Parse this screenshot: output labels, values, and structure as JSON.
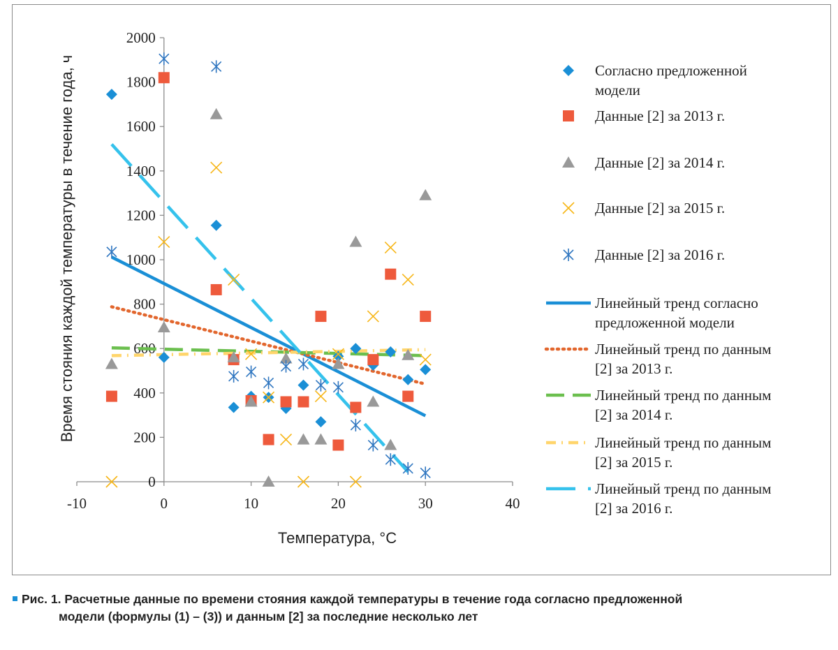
{
  "chart_data": {
    "type": "scatter",
    "xlabel": "Температура, °C",
    "ylabel": "Время стояния каждой температуры в течение года, ч",
    "xlim": [
      -10,
      40
    ],
    "ylim": [
      0,
      2000
    ],
    "xticks": [
      "-10",
      "0",
      "10",
      "20",
      "30",
      "40"
    ],
    "yticks": [
      "0",
      "200",
      "400",
      "600",
      "800",
      "1000",
      "1200",
      "1400",
      "1600",
      "1800",
      "2000"
    ],
    "grid": false,
    "legend_position": "right",
    "series": [
      {
        "name": "Согласно предложенной модели",
        "marker": "diamond",
        "color": "#1a8fd6",
        "points": [
          [
            -6,
            1745
          ],
          [
            0,
            560
          ],
          [
            6,
            1155
          ],
          [
            8,
            335
          ],
          [
            10,
            385
          ],
          [
            12,
            380
          ],
          [
            14,
            330
          ],
          [
            16,
            435
          ],
          [
            18,
            270
          ],
          [
            20,
            565
          ],
          [
            22,
            600
          ],
          [
            24,
            525
          ],
          [
            26,
            585
          ],
          [
            28,
            460
          ],
          [
            30,
            505
          ]
        ]
      },
      {
        "name": "Данные [2] за 2013 г.",
        "marker": "square",
        "color": "#ee5a3c",
        "points": [
          [
            -6,
            385
          ],
          [
            0,
            1820
          ],
          [
            6,
            865
          ],
          [
            8,
            550
          ],
          [
            10,
            365
          ],
          [
            12,
            190
          ],
          [
            14,
            360
          ],
          [
            16,
            360
          ],
          [
            18,
            745
          ],
          [
            20,
            165
          ],
          [
            22,
            335
          ],
          [
            24,
            550
          ],
          [
            26,
            935
          ],
          [
            28,
            385
          ],
          [
            30,
            745
          ]
        ]
      },
      {
        "name": "Данные [2] за 2014 г.",
        "marker": "triangle",
        "color": "#999999",
        "points": [
          [
            -6,
            530
          ],
          [
            0,
            695
          ],
          [
            6,
            1655
          ],
          [
            8,
            560
          ],
          [
            10,
            360
          ],
          [
            12,
            0
          ],
          [
            14,
            555
          ],
          [
            16,
            190
          ],
          [
            18,
            190
          ],
          [
            20,
            530
          ],
          [
            22,
            1080
          ],
          [
            24,
            360
          ],
          [
            26,
            165
          ],
          [
            28,
            570
          ],
          [
            30,
            1290
          ]
        ]
      },
      {
        "name": "Данные [2] за 2015 г.",
        "marker": "x",
        "color": "#f7b617",
        "points": [
          [
            -6,
            0
          ],
          [
            0,
            1080
          ],
          [
            6,
            1415
          ],
          [
            8,
            910
          ],
          [
            10,
            575
          ],
          [
            12,
            380
          ],
          [
            14,
            190
          ],
          [
            16,
            0
          ],
          [
            18,
            385
          ],
          [
            20,
            575
          ],
          [
            22,
            0
          ],
          [
            24,
            745
          ],
          [
            26,
            1055
          ],
          [
            28,
            910
          ],
          [
            30,
            550
          ]
        ]
      },
      {
        "name": "Данные [2] за 2016 г.",
        "marker": "asterisk",
        "color": "#2f76c0",
        "points": [
          [
            -6,
            1035
          ],
          [
            0,
            1905
          ],
          [
            6,
            1870
          ],
          [
            8,
            475
          ],
          [
            10,
            495
          ],
          [
            12,
            445
          ],
          [
            14,
            520
          ],
          [
            16,
            530
          ],
          [
            18,
            435
          ],
          [
            20,
            425
          ],
          [
            22,
            255
          ],
          [
            24,
            165
          ],
          [
            26,
            100
          ],
          [
            28,
            60
          ],
          [
            30,
            40
          ]
        ]
      }
    ],
    "trendlines": [
      {
        "name": "Линейный тренд согласно предложенной модели",
        "style": "solid",
        "color": "#1a8fd6",
        "x": [
          -6,
          30
        ],
        "y": [
          1012,
          297
        ]
      },
      {
        "name": "Линейный тренд по данным [2] за 2013 г.",
        "style": "dotted",
        "color": "#e2662d",
        "x": [
          -6,
          30
        ],
        "y": [
          788,
          440
        ]
      },
      {
        "name": "Линейный тренд по данным [2] за 2014 г.",
        "style": "dashed",
        "color": "#6bbf4e",
        "x": [
          -6,
          30
        ],
        "y": [
          603,
          568
        ]
      },
      {
        "name": "Линейный тренд по данным [2] за 2015 г.",
        "style": "dashdot",
        "color": "#ffd56b",
        "x": [
          -6,
          30
        ],
        "y": [
          568,
          595
        ]
      },
      {
        "name": "Линейный тренд по данным [2] за 2016 г.",
        "style": "longdash",
        "color": "#35c2ec",
        "x": [
          -6,
          28
        ],
        "y": [
          1520,
          45
        ]
      }
    ],
    "legend": [
      {
        "lines": [
          "Согласно предложенной",
          "модели"
        ],
        "kind": "marker",
        "ref": 0
      },
      {
        "lines": [
          "Данные [2] за 2013 г."
        ],
        "kind": "marker",
        "ref": 1
      },
      {
        "lines": [
          "Данные [2] за 2014 г."
        ],
        "kind": "marker",
        "ref": 2
      },
      {
        "lines": [
          "Данные [2] за 2015 г."
        ],
        "kind": "marker",
        "ref": 3
      },
      {
        "lines": [
          "Данные [2] за 2016 г."
        ],
        "kind": "marker",
        "ref": 4
      },
      {
        "lines": [
          "Линейный тренд согласно",
          "предложенной модели"
        ],
        "kind": "line",
        "ref": 0
      },
      {
        "lines": [
          "Линейный тренд по данным",
          "[2] за 2013 г."
        ],
        "kind": "line",
        "ref": 1
      },
      {
        "lines": [
          "Линейный тренд по данным",
          "[2] за 2014 г."
        ],
        "kind": "line",
        "ref": 2
      },
      {
        "lines": [
          "Линейный тренд по данным",
          "[2] за 2015 г."
        ],
        "kind": "line",
        "ref": 3
      },
      {
        "lines": [
          "Линейный тренд по данным",
          "[2] за 2016 г."
        ],
        "kind": "line",
        "ref": 4
      }
    ]
  },
  "caption": {
    "line1": "Рис. 1. Расчетные данные по времени стояния каждой температуры в течение года согласно предложенной",
    "line2": "модели (формулы (1) – (3)) и данным [2] за последние несколько лет"
  }
}
